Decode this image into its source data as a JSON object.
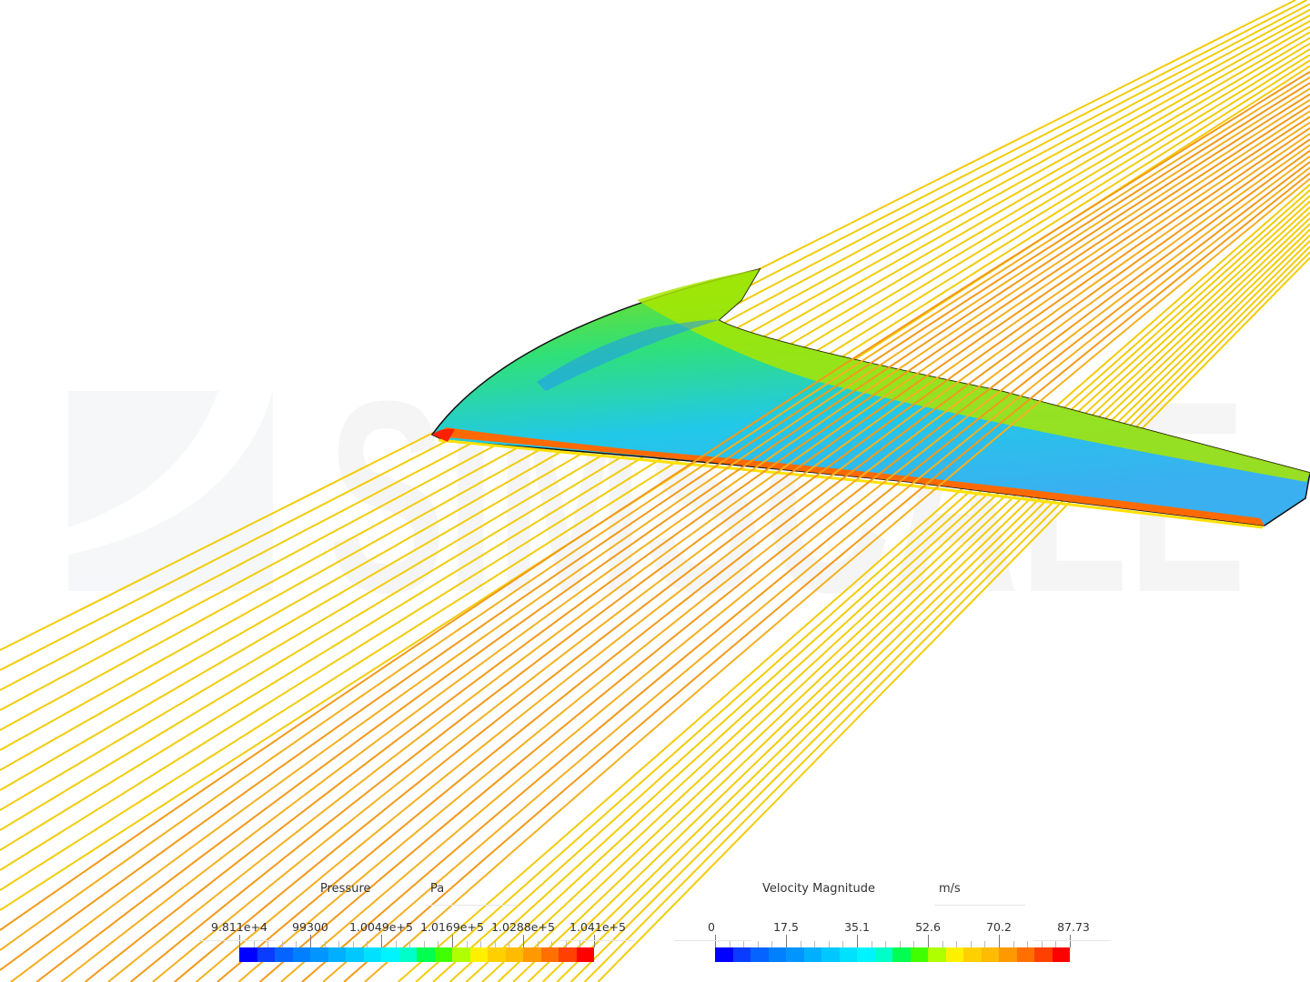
{
  "watermark": "SIMSCALE",
  "colors": {
    "streamline": "#f2cc0c",
    "colormap": [
      "#0000ff",
      "#0a3cff",
      "#0564ff",
      "#0080ff",
      "#0095ff",
      "#00b0ff",
      "#00c8ff",
      "#00e0ff",
      "#00f4ff",
      "#00ffc8",
      "#00ff50",
      "#40ff00",
      "#b0ff00",
      "#fff000",
      "#ffd000",
      "#ffbb00",
      "#ff9900",
      "#ff7000",
      "#ff4000",
      "#ff0000"
    ]
  },
  "legends": [
    {
      "title": "Pressure",
      "unit": "Pa",
      "ticks": [
        "9.811e+4",
        "99300",
        "1.0049e+5",
        "1.0169e+5",
        "1.0288e+5",
        "1.041e+5"
      ]
    },
    {
      "title": "Velocity Magnitude",
      "unit": "m/s",
      "ticks": [
        "0",
        "17.5",
        "35.1",
        "52.6",
        "70.2",
        "87.73"
      ]
    }
  ]
}
